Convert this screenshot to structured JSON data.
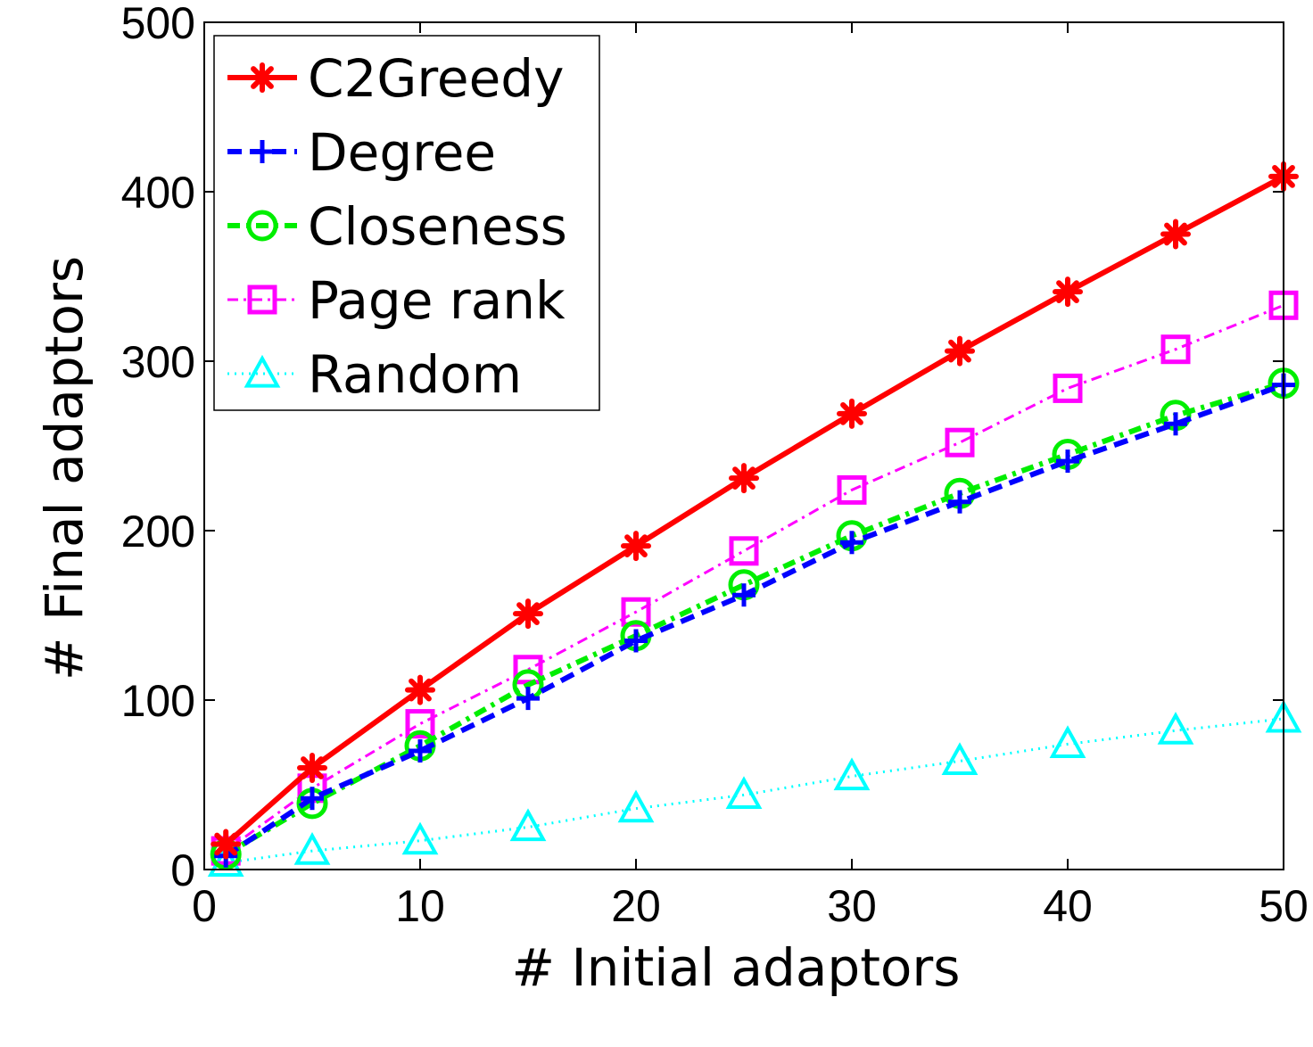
{
  "chart_data": {
    "type": "line",
    "title": "",
    "xlabel": "# Initial adaptors",
    "ylabel": "# Final adaptors",
    "xlim": [
      0,
      50
    ],
    "ylim": [
      0,
      500
    ],
    "xticks": [
      0,
      10,
      20,
      30,
      40,
      50
    ],
    "yticks": [
      0,
      100,
      200,
      300,
      400,
      500
    ],
    "xtick_labels": [
      "0",
      "10",
      "20",
      "30",
      "40",
      "50"
    ],
    "ytick_labels": [
      "0",
      "100",
      "200",
      "300",
      "400",
      "500"
    ],
    "grid": false,
    "legend_position": "top-left",
    "x": [
      1,
      5,
      10,
      15,
      20,
      25,
      30,
      35,
      40,
      45,
      50
    ],
    "series": [
      {
        "name": "C2Greedy",
        "color": "#ff0000",
        "marker": "asterisk",
        "line_style": "solid",
        "values": [
          15,
          60,
          106,
          151,
          191,
          231,
          269,
          306,
          341,
          375,
          409
        ]
      },
      {
        "name": "Degree",
        "color": "#0000ff",
        "marker": "plus",
        "line_style": "dashed",
        "values": [
          8,
          42,
          70,
          101,
          135,
          162,
          193,
          217,
          241,
          263,
          286
        ]
      },
      {
        "name": "Closeness",
        "color": "#00ee00",
        "marker": "circle",
        "line_style": "dashdot",
        "values": [
          9,
          39,
          73,
          109,
          138,
          168,
          197,
          222,
          245,
          268,
          287
        ]
      },
      {
        "name": "Page rank",
        "color": "#ff00ff",
        "marker": "square",
        "line_style": "dashdot-thin",
        "values": [
          11,
          48,
          86,
          118,
          152,
          188,
          224,
          252,
          284,
          307,
          333
        ]
      },
      {
        "name": "Random",
        "color": "#00ffff",
        "marker": "triangle",
        "line_style": "dotted",
        "values": [
          4,
          11,
          17,
          25,
          36,
          44,
          55,
          64,
          74,
          82,
          89
        ]
      }
    ]
  }
}
